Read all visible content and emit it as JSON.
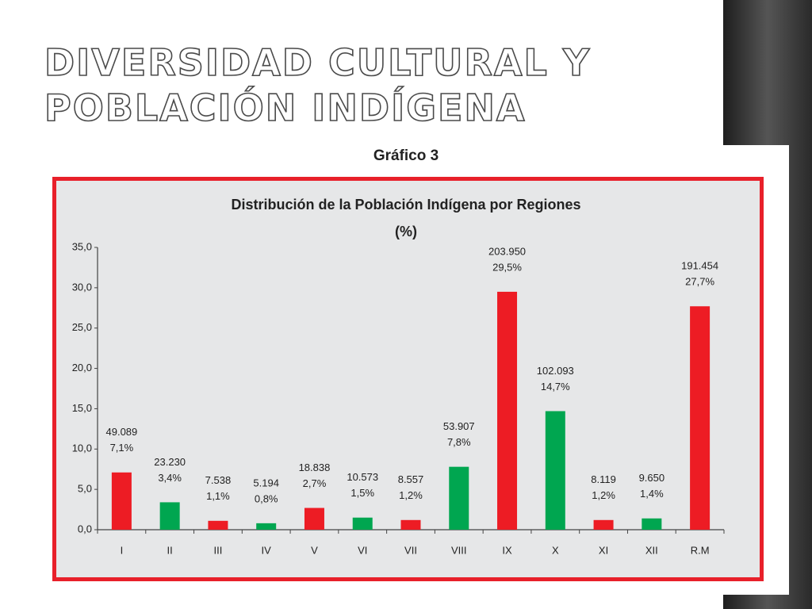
{
  "slide": {
    "title_lines": [
      "DIVERSIDAD CULTURAL Y",
      "POBLACIÓN INDÍGENA"
    ],
    "caption": "Gráfico 3"
  },
  "chart_data": {
    "type": "bar",
    "title": "Distribución de la Población Indígena por Regiones",
    "subtitle": "(%)",
    "categories": [
      "I",
      "II",
      "III",
      "IV",
      "V",
      "VI",
      "VII",
      "VIII",
      "IX",
      "X",
      "XI",
      "XII",
      "R.M"
    ],
    "values": [
      7.1,
      3.4,
      1.1,
      0.8,
      2.7,
      1.5,
      1.2,
      7.8,
      29.5,
      14.7,
      1.2,
      1.4,
      27.7
    ],
    "value_labels": [
      "7,1%",
      "3,4%",
      "1,1%",
      "0,8%",
      "2,7%",
      "1,5%",
      "1,2%",
      "7,8%",
      "29,5%",
      "14,7%",
      "1,2%",
      "1,4%",
      "27,7%"
    ],
    "population_labels": [
      "49.089",
      "23.230",
      "7.538",
      "5.194",
      "18.838",
      "10.573",
      "8.557",
      "53.907",
      "203.950",
      "102.093",
      "8.119",
      "9.650",
      "191.454"
    ],
    "colors": [
      "#ed1c24",
      "#00a650",
      "#ed1c24",
      "#00a650",
      "#ed1c24",
      "#00a650",
      "#ed1c24",
      "#00a650",
      "#ed1c24",
      "#00a650",
      "#ed1c24",
      "#00a650",
      "#ed1c24"
    ],
    "ylim": [
      0,
      35
    ],
    "yticks": [
      {
        "value": 0,
        "label": "0,0"
      },
      {
        "value": 5,
        "label": "5,0"
      },
      {
        "value": 10,
        "label": "10,0"
      },
      {
        "value": 15,
        "label": "15,0"
      },
      {
        "value": 20,
        "label": "20,0"
      },
      {
        "value": 25,
        "label": "25,0"
      },
      {
        "value": 30,
        "label": "30,0"
      },
      {
        "value": 35,
        "label": "35,0"
      }
    ],
    "grid": false
  }
}
